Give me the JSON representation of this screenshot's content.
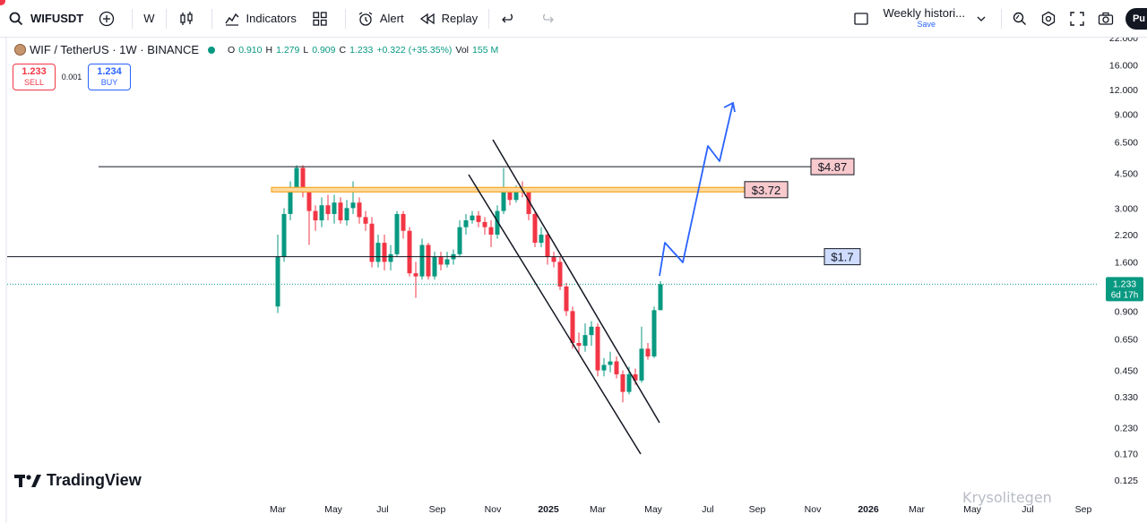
{
  "toolbar": {
    "symbol": "WIFUSDT",
    "interval": "W",
    "indicators_label": "Indicators",
    "alert_label": "Alert",
    "replay_label": "Replay",
    "layout_title": "Weekly histori...",
    "layout_sub": "Save",
    "publish_label": "Pu"
  },
  "legend": {
    "title": "WIF / TetherUS · 1W · BINANCE",
    "o_label": "O",
    "o": "0.910",
    "h_label": "H",
    "h": "1.279",
    "l_label": "L",
    "l": "0.909",
    "c_label": "C",
    "c": "1.233",
    "change": "+0.322 (+35.35%)",
    "vol_label": "Vol",
    "vol": "155 M"
  },
  "trade": {
    "sell_price": "1.233",
    "sell_label": "SELL",
    "spread": "0.001",
    "buy_price": "1.234",
    "buy_label": "BUY"
  },
  "price_axis": [
    "22.000",
    "16.000",
    "12.000",
    "9.000",
    "6.500",
    "4.500",
    "3.000",
    "2.200",
    "1.600",
    "0.900",
    "0.650",
    "0.450",
    "0.330",
    "0.230",
    "0.170",
    "0.125"
  ],
  "time_axis": [
    "Mar",
    "May",
    "Jul",
    "Sep",
    "Nov",
    "2025",
    "Mar",
    "May",
    "Jul",
    "Sep",
    "Nov",
    "2026",
    "Mar",
    "May",
    "Jul",
    "Sep"
  ],
  "current_price": {
    "price": "1.233",
    "countdown": "6d 17h"
  },
  "levels": [
    {
      "label": "$4.87",
      "price": 4.87
    },
    {
      "label": "$3.72",
      "price": 3.72
    },
    {
      "label": "$1.7",
      "price": 1.7
    }
  ],
  "colors": {
    "up": "#089981",
    "down": "#f23645",
    "projection": "#2962ff",
    "zone": "#f5a623"
  },
  "branding": {
    "logo_text": "TradingView",
    "watermark": "Krysolitegen"
  }
}
